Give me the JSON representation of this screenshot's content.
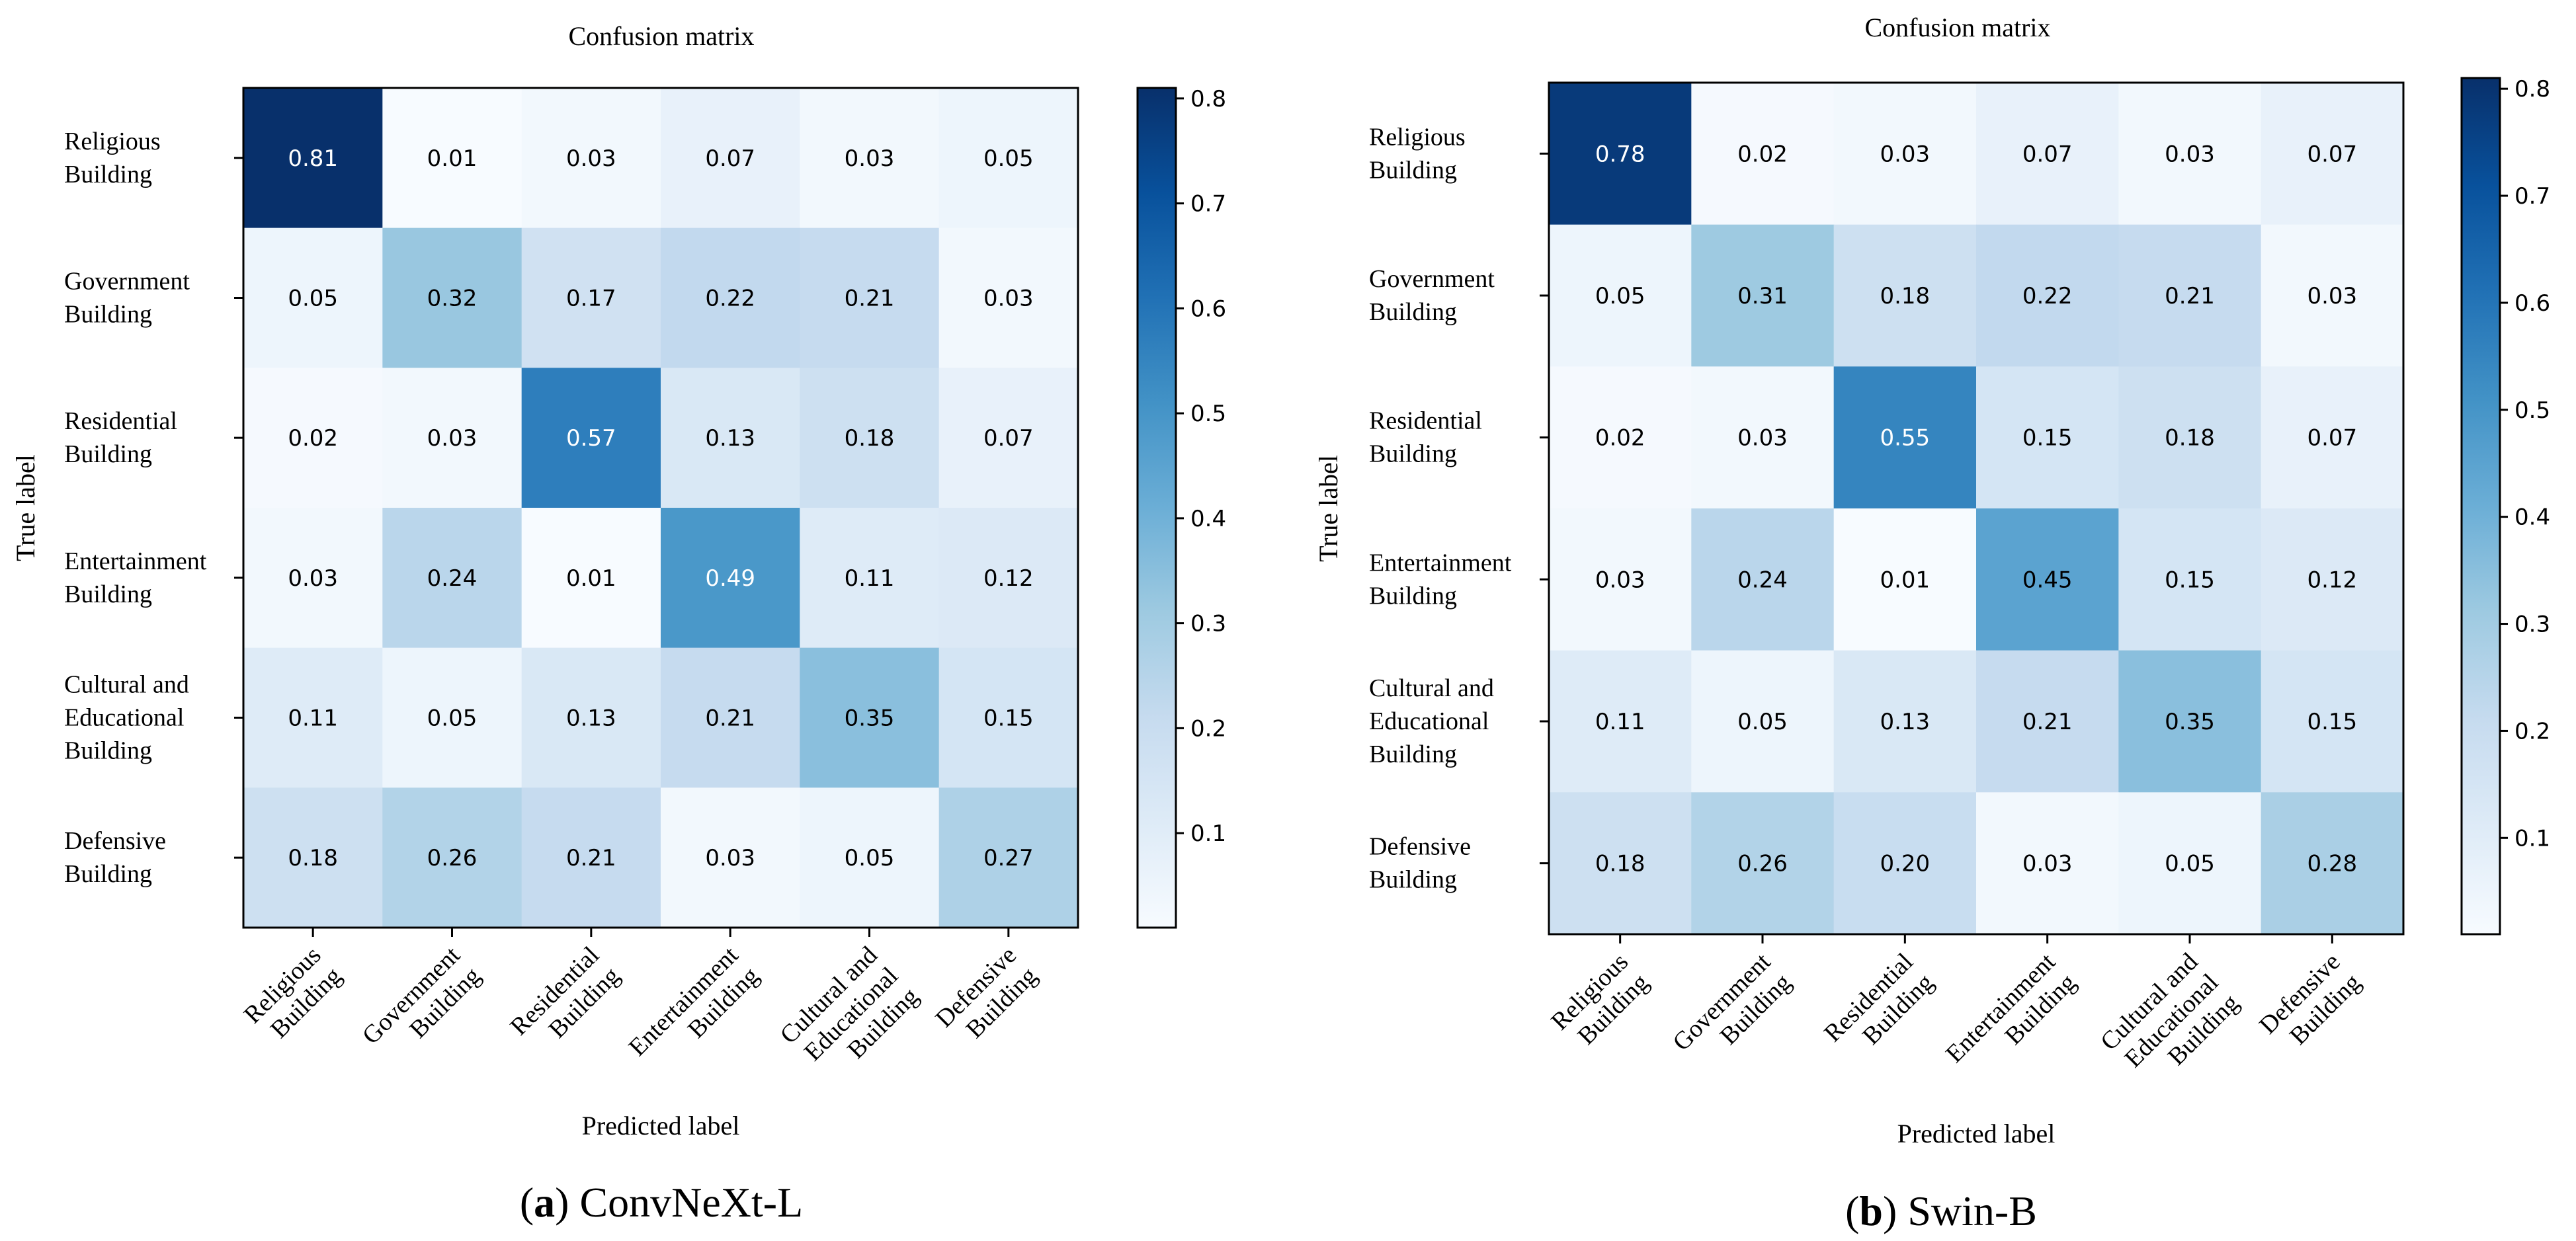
{
  "chart_data": [
    {
      "type": "heatmap",
      "title": "Confusion matrix",
      "xlabel": "Predicted label",
      "ylabel": "True label",
      "caption_letter": "a",
      "caption_text": "ConvNeXt-L",
      "categories": [
        [
          "Religious",
          "Building"
        ],
        [
          "Government",
          "Building"
        ],
        [
          "Residential",
          "Building"
        ],
        [
          "Entertainment",
          "Building"
        ],
        [
          "Cultural and",
          "Educational",
          "Building"
        ],
        [
          "Defensive",
          "Building"
        ]
      ],
      "values": [
        [
          0.81,
          0.01,
          0.03,
          0.07,
          0.03,
          0.05
        ],
        [
          0.05,
          0.32,
          0.17,
          0.22,
          0.21,
          0.03
        ],
        [
          0.02,
          0.03,
          0.57,
          0.13,
          0.18,
          0.07
        ],
        [
          0.03,
          0.24,
          0.01,
          0.49,
          0.11,
          0.12
        ],
        [
          0.11,
          0.05,
          0.13,
          0.21,
          0.35,
          0.15
        ],
        [
          0.18,
          0.26,
          0.21,
          0.03,
          0.05,
          0.27
        ]
      ],
      "value_labels": [
        [
          "0.81",
          "0.01",
          "0.03",
          "0.07",
          "0.03",
          "0.05"
        ],
        [
          "0.05",
          "0.32",
          "0.17",
          "0.22",
          "0.21",
          "0.03"
        ],
        [
          "0.02",
          "0.03",
          "0.57",
          "0.13",
          "0.18",
          "0.07"
        ],
        [
          "0.03",
          "0.24",
          "0.01",
          "0.49",
          "0.11",
          "0.12"
        ],
        [
          "0.11",
          "0.05",
          "0.13",
          "0.21",
          "0.35",
          "0.15"
        ],
        [
          "0.18",
          "0.26",
          "0.21",
          "0.03",
          "0.05",
          "0.27"
        ]
      ],
      "colorbar": {
        "range": [
          0.01,
          0.81
        ],
        "ticks": [
          "0.1",
          "0.2",
          "0.3",
          "0.4",
          "0.5",
          "0.6",
          "0.7",
          "0.8"
        ]
      },
      "colormap": "Blues"
    },
    {
      "type": "heatmap",
      "title": "Confusion matrix",
      "xlabel": "Predicted label",
      "ylabel": "True label",
      "caption_letter": "b",
      "caption_text": "Swin-B",
      "categories": [
        [
          "Religious",
          "Building"
        ],
        [
          "Government",
          "Building"
        ],
        [
          "Residential",
          "Building"
        ],
        [
          "Entertainment",
          "Building"
        ],
        [
          "Cultural and",
          "Educational",
          "Building"
        ],
        [
          "Defensive",
          "Building"
        ]
      ],
      "values": [
        [
          0.78,
          0.02,
          0.03,
          0.07,
          0.03,
          0.07
        ],
        [
          0.05,
          0.31,
          0.18,
          0.22,
          0.21,
          0.03
        ],
        [
          0.02,
          0.03,
          0.55,
          0.15,
          0.18,
          0.07
        ],
        [
          0.03,
          0.24,
          0.01,
          0.45,
          0.15,
          0.12
        ],
        [
          0.11,
          0.05,
          0.13,
          0.21,
          0.35,
          0.15
        ],
        [
          0.18,
          0.26,
          0.2,
          0.03,
          0.05,
          0.28
        ]
      ],
      "value_labels": [
        [
          "0.78",
          "0.02",
          "0.03",
          "0.07",
          "0.03",
          "0.07"
        ],
        [
          "0.05",
          "0.31",
          "0.18",
          "0.22",
          "0.21",
          "0.03"
        ],
        [
          "0.02",
          "0.03",
          "0.55",
          "0.15",
          "0.18",
          "0.07"
        ],
        [
          "0.03",
          "0.24",
          "0.01",
          "0.45",
          "0.15",
          "0.12"
        ],
        [
          "0.11",
          "0.05",
          "0.13",
          "0.21",
          "0.35",
          "0.15"
        ],
        [
          "0.18",
          "0.26",
          "0.20",
          "0.03",
          "0.05",
          "0.28"
        ]
      ],
      "colorbar": {
        "range": [
          0.01,
          0.81
        ],
        "ticks": [
          "0.1",
          "0.2",
          "0.3",
          "0.4",
          "0.5",
          "0.6",
          "0.7",
          "0.8"
        ]
      },
      "colormap": "Blues"
    }
  ],
  "colors": {
    "blues_low": "#f7fbff",
    "blues_high": "#08306b",
    "axis": "#000000",
    "text_dark": "#000000",
    "text_light": "#ffffff"
  }
}
